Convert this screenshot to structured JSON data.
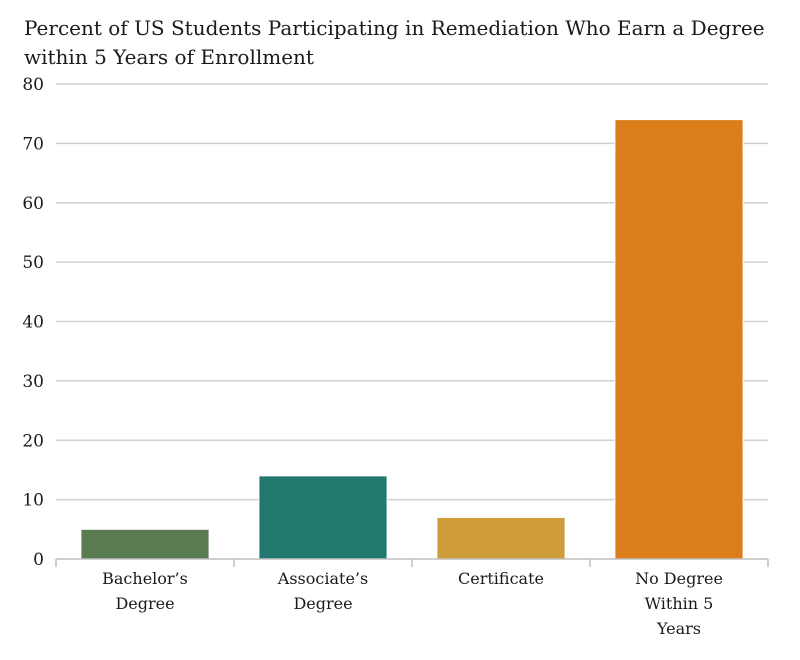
{
  "chart_data": {
    "type": "bar",
    "title": "Percent of US Students Participating in Remediation Who Earn a Degree within 5 Years of Enrollment",
    "xlabel": "",
    "ylabel": "",
    "ylim": [
      0,
      80
    ],
    "yticks": [
      0,
      10,
      20,
      30,
      40,
      50,
      60,
      70,
      80
    ],
    "grid": true,
    "legend": "none",
    "categories": [
      [
        "Bachelor’s",
        "Degree"
      ],
      [
        "Associate’s",
        "Degree"
      ],
      [
        "Certificate"
      ],
      [
        "No Degree",
        "Within 5",
        "Years"
      ]
    ],
    "values": [
      5,
      14,
      7,
      74
    ],
    "colors": [
      "#5a7a52",
      "#22786e",
      "#cf9c3a",
      "#dc7d1b"
    ]
  }
}
